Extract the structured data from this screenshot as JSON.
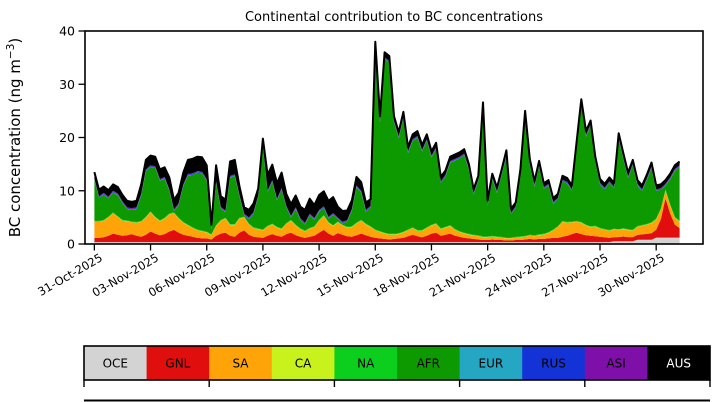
{
  "figure": {
    "kind": "stacked area time-series with colorbar legend"
  },
  "chart_data": {
    "type": "area",
    "title": "Continental contribution to BC concentrations",
    "ylabel_prefix": "BC concentration (ng m",
    "ylabel_sup": "−3",
    "ylabel_suffix": ")",
    "ylim": [
      0,
      40
    ],
    "yticks": [
      0,
      10,
      20,
      30,
      40
    ],
    "xlim_days": [
      -0.5,
      32.5
    ],
    "x_ticks": [
      {
        "day": 0,
        "label": "31-Oct-2025"
      },
      {
        "day": 3,
        "label": "03-Nov-2025"
      },
      {
        "day": 6,
        "label": "06-Nov-2025"
      },
      {
        "day": 9,
        "label": "09-Nov-2025"
      },
      {
        "day": 12,
        "label": "12-Nov-2025"
      },
      {
        "day": 15,
        "label": "15-Nov-2025"
      },
      {
        "day": 18,
        "label": "18-Nov-2025"
      },
      {
        "day": 21,
        "label": "21-Nov-2025"
      },
      {
        "day": 24,
        "label": "24-Nov-2025"
      },
      {
        "day": 27,
        "label": "27-Nov-2025"
      },
      {
        "day": 30,
        "label": "30-Nov-2025"
      }
    ],
    "x_start_day": 0,
    "x_step_days": 0.25,
    "total": [
      13.5,
      10.2,
      10.8,
      10.1,
      11.2,
      10.7,
      9.2,
      8.1,
      7.9,
      8.1,
      11.2,
      15.8,
      16.6,
      16.4,
      14,
      14.4,
      12.5,
      8.3,
      9.6,
      13.4,
      15.8,
      16,
      16.4,
      16.3,
      14.8,
      3.6,
      14.8,
      9,
      8.3,
      15.5,
      15.8,
      10.8,
      6.9,
      6.4,
      7.6,
      10.4,
      19.8,
      13,
      14.9,
      11.4,
      13.4,
      9.4,
      7.5,
      9.1,
      7,
      6.4,
      8.5,
      7.3,
      9.2,
      9.9,
      8.1,
      8.8,
      7,
      6.2,
      6.3,
      8.2,
      12.6,
      11.6,
      7.8,
      8.4,
      38,
      24,
      36,
      35.3,
      24,
      21,
      24.8,
      18.2,
      20.6,
      21.2,
      18.6,
      20.6,
      17.4,
      19,
      12.6,
      13.8,
      16.4,
      16.8,
      17.2,
      17.8,
      15,
      10.3,
      12.8,
      26.6,
      8.2,
      13.2,
      10.6,
      14,
      17.6,
      6.6,
      7.8,
      14,
      25,
      16,
      11.8,
      15.6,
      11.4,
      12,
      8.6,
      9.4,
      12.8,
      12.4,
      11,
      19.2,
      27.2,
      21.2,
      23.2,
      16.4,
      12.2,
      11.3,
      12.5,
      11.5,
      20.8,
      17,
      13.4,
      15.8,
      12,
      11,
      13,
      15.3,
      11,
      11.2,
      12,
      13.2,
      14.8,
      15.5
    ],
    "stack_order": [
      "OCE",
      "GNL",
      "SA",
      "CA",
      "NA",
      "AFR",
      "EUR",
      "RUS",
      "ASI",
      "AUS"
    ],
    "series": {
      "OCE": {
        "color": "#d3d3d3",
        "values": [
          0.35,
          0.35,
          0.35,
          0.35,
          0.35,
          0.35,
          0.35,
          0.35,
          0.35,
          0.35,
          0.35,
          0.35,
          0.35,
          0.35,
          0.35,
          0.35,
          0.35,
          0.35,
          0.35,
          0.35,
          0.35,
          0.35,
          0.35,
          0.35,
          0.35,
          0.35,
          0.35,
          0.35,
          0.35,
          0.35,
          0.35,
          0.35,
          0.35,
          0.35,
          0.35,
          0.35,
          0.35,
          0.35,
          0.35,
          0.35,
          0.35,
          0.35,
          0.35,
          0.35,
          0.35,
          0.35,
          0.35,
          0.35,
          0.35,
          0.35,
          0.35,
          0.35,
          0.35,
          0.35,
          0.35,
          0.35,
          0.35,
          0.35,
          0.35,
          0.35,
          0.35,
          0.35,
          0.35,
          0.35,
          0.35,
          0.35,
          0.35,
          0.35,
          0.35,
          0.35,
          0.35,
          0.35,
          0.35,
          0.35,
          0.35,
          0.35,
          0.35,
          0.35,
          0.35,
          0.35,
          0.35,
          0.35,
          0.35,
          0.35,
          0.35,
          0.35,
          0.35,
          0.35,
          0.35,
          0.35,
          0.35,
          0.35,
          0.35,
          0.35,
          0.35,
          0.35,
          0.35,
          0.35,
          0.35,
          0.35,
          0.35,
          0.35,
          0.35,
          0.35,
          0.35,
          0.35,
          0.35,
          0.35,
          0.35,
          0.35,
          0.35,
          0.5,
          0.5,
          0.5,
          0.5,
          0.5,
          0.8,
          0.8,
          0.8,
          0.8,
          1.2,
          1.2,
          1.2,
          1.2,
          1.2,
          1.2
        ]
      },
      "GNL": {
        "color": "#e10e0e",
        "values": [
          0.8,
          0.8,
          0.9,
          1.2,
          1.6,
          1.4,
          1.2,
          1.3,
          1.5,
          1.2,
          1,
          1.4,
          2,
          1.6,
          1.3,
          1.5,
          2,
          2.3,
          1.8,
          1.4,
          1.2,
          1,
          0.8,
          0.7,
          0.7,
          0.5,
          1.2,
          1.6,
          1.8,
          1.2,
          1,
          1.8,
          2.2,
          1.4,
          1,
          0.9,
          0.8,
          1.2,
          1.5,
          1.2,
          1,
          1.5,
          1.8,
          1.3,
          1,
          0.8,
          1,
          1.2,
          1.8,
          2.3,
          1.6,
          1.2,
          1.7,
          1.4,
          1.1,
          1,
          1.3,
          1.6,
          1.3,
          1,
          0.8,
          0.7,
          0.6,
          0.5,
          0.6,
          0.7,
          0.8,
          1.1,
          1.4,
          1.1,
          0.9,
          1.2,
          1.6,
          1.8,
          1.2,
          1.4,
          1.6,
          1.2,
          1,
          0.8,
          0.7,
          0.6,
          0.5,
          0.4,
          0.4,
          0.5,
          0.4,
          0.4,
          0.3,
          0.3,
          0.4,
          0.4,
          0.5,
          0.6,
          0.5,
          0.6,
          0.6,
          0.7,
          0.8,
          0.8,
          1,
          1.2,
          1.5,
          1.8,
          1.5,
          1.3,
          1.2,
          1.1,
          1,
          0.9,
          0.8,
          0.8,
          0.8,
          0.9,
          0.8,
          0.8,
          0.9,
          1,
          1.1,
          1.2,
          1.5,
          3.5,
          7.4,
          4.5,
          2.4,
          1.8
        ]
      },
      "SA": {
        "color": "#ffa408",
        "values": [
          3,
          3,
          3.1,
          3.4,
          3.8,
          3.3,
          2.8,
          2.6,
          2.2,
          2.4,
          2.8,
          3.2,
          3.6,
          3,
          2.6,
          2.9,
          3.2,
          3.1,
          2.6,
          2.2,
          1.9,
          1.6,
          1.4,
          1.3,
          1.1,
          0.8,
          1.8,
          2.4,
          2.6,
          2,
          2.2,
          2.6,
          2.4,
          1.9,
          1.6,
          1.5,
          1.4,
          1.7,
          1.8,
          1.5,
          1.4,
          1.9,
          2.2,
          1.8,
          1.4,
          1.2,
          1.5,
          1.6,
          2.2,
          2.6,
          2,
          1.8,
          2,
          1.7,
          1.6,
          1.8,
          2.2,
          2.4,
          2,
          1.8,
          1.4,
          1.2,
          1,
          0.9,
          0.8,
          0.8,
          1,
          1.1,
          1.2,
          1,
          1.2,
          1.4,
          1.5,
          1.6,
          1.2,
          1.3,
          1.4,
          1.1,
          0.9,
          0.8,
          0.7,
          0.6,
          0.6,
          0.5,
          0.5,
          0.5,
          0.5,
          0.4,
          0.4,
          0.4,
          0.4,
          0.5,
          0.5,
          0.6,
          0.6,
          0.7,
          0.8,
          1,
          1.4,
          2,
          2.8,
          2.4,
          2.2,
          2,
          2.1,
          1.8,
          1.6,
          1.8,
          1.5,
          1.4,
          1.3,
          1.4,
          1.3,
          1.4,
          1.3,
          1.2,
          1.5,
          1.6,
          1.7,
          1.9,
          1.9,
          1.8,
          1.4,
          1.5,
          1.3,
          1.2
        ]
      },
      "CA": {
        "color": "#c9f21c",
        "const": 0.06
      },
      "NA": {
        "color": "#0bce1d",
        "const": 0.12
      },
      "AFR": {
        "color": "#0d9a00",
        "remainder": true
      },
      "EUR": {
        "color": "#25a6c3",
        "const": 0.05
      },
      "RUS": {
        "color": "#1433d6",
        "const": 0.14
      },
      "ASI": {
        "color": "#7e0fa8",
        "const": 0.14
      },
      "AUS": {
        "color": "#000000",
        "values": [
          1.2,
          1.2,
          1.2,
          1.2,
          1.2,
          1.2,
          1.2,
          1.2,
          1.2,
          1.2,
          1.8,
          1.8,
          1.8,
          1.8,
          1.8,
          1.8,
          2.2,
          1.8,
          2,
          2.2,
          2.6,
          2.7,
          2.7,
          2.7,
          2.6,
          0.5,
          3,
          2,
          2,
          2.7,
          2.7,
          1.6,
          1.2,
          1.4,
          1.6,
          1.3,
          1.3,
          2.9,
          2.9,
          2.9,
          2.9,
          2.2,
          2.2,
          2.2,
          2.2,
          2.4,
          2.8,
          2.4,
          2.8,
          2.8,
          3,
          3,
          2,
          2,
          1.8,
          1.6,
          1.6,
          1.6,
          1.4,
          1.2,
          0.9,
          0.9,
          0.9,
          0.9,
          0.8,
          0.8,
          0.8,
          0.8,
          0.9,
          0.9,
          0.9,
          0.9,
          0.8,
          0.8,
          0.8,
          0.8,
          0.8,
          0.8,
          0.8,
          0.8,
          0.8,
          0.7,
          0.7,
          0.7,
          0.7,
          0.7,
          0.7,
          0.7,
          0.7,
          0.7,
          0.7,
          0.7,
          0.7,
          0.7,
          0.7,
          0.7,
          0.7,
          0.7,
          0.7,
          0.7,
          0.7,
          0.7,
          0.7,
          0.7,
          0.7,
          0.7,
          0.7,
          0.7,
          0.7,
          0.7,
          0.7,
          0.7,
          0.8,
          0.8,
          0.7,
          0.7,
          0.7,
          0.7,
          0.7,
          0.7,
          0.7,
          0.7,
          0.7,
          0.7,
          0.7,
          0.7
        ]
      }
    },
    "top_line_color": "#000000",
    "legend": {
      "position": "bottom",
      "tick_every_cells": 2,
      "entries": [
        {
          "label": "OCE",
          "color": "#d3d3d3",
          "text_color": "#000000"
        },
        {
          "label": "GNL",
          "color": "#e10e0e",
          "text_color": "#000000"
        },
        {
          "label": "SA",
          "color": "#ffa408",
          "text_color": "#000000"
        },
        {
          "label": "CA",
          "color": "#c9f21c",
          "text_color": "#000000"
        },
        {
          "label": "NA",
          "color": "#0bce1d",
          "text_color": "#000000"
        },
        {
          "label": "AFR",
          "color": "#0d9a00",
          "text_color": "#000000"
        },
        {
          "label": "EUR",
          "color": "#25a6c3",
          "text_color": "#000000"
        },
        {
          "label": "RUS",
          "color": "#1433d6",
          "text_color": "#000000"
        },
        {
          "label": "ASI",
          "color": "#7e0fa8",
          "text_color": "#000000"
        },
        {
          "label": "AUS",
          "color": "#000000",
          "text_color": "#ffffff"
        }
      ]
    }
  }
}
